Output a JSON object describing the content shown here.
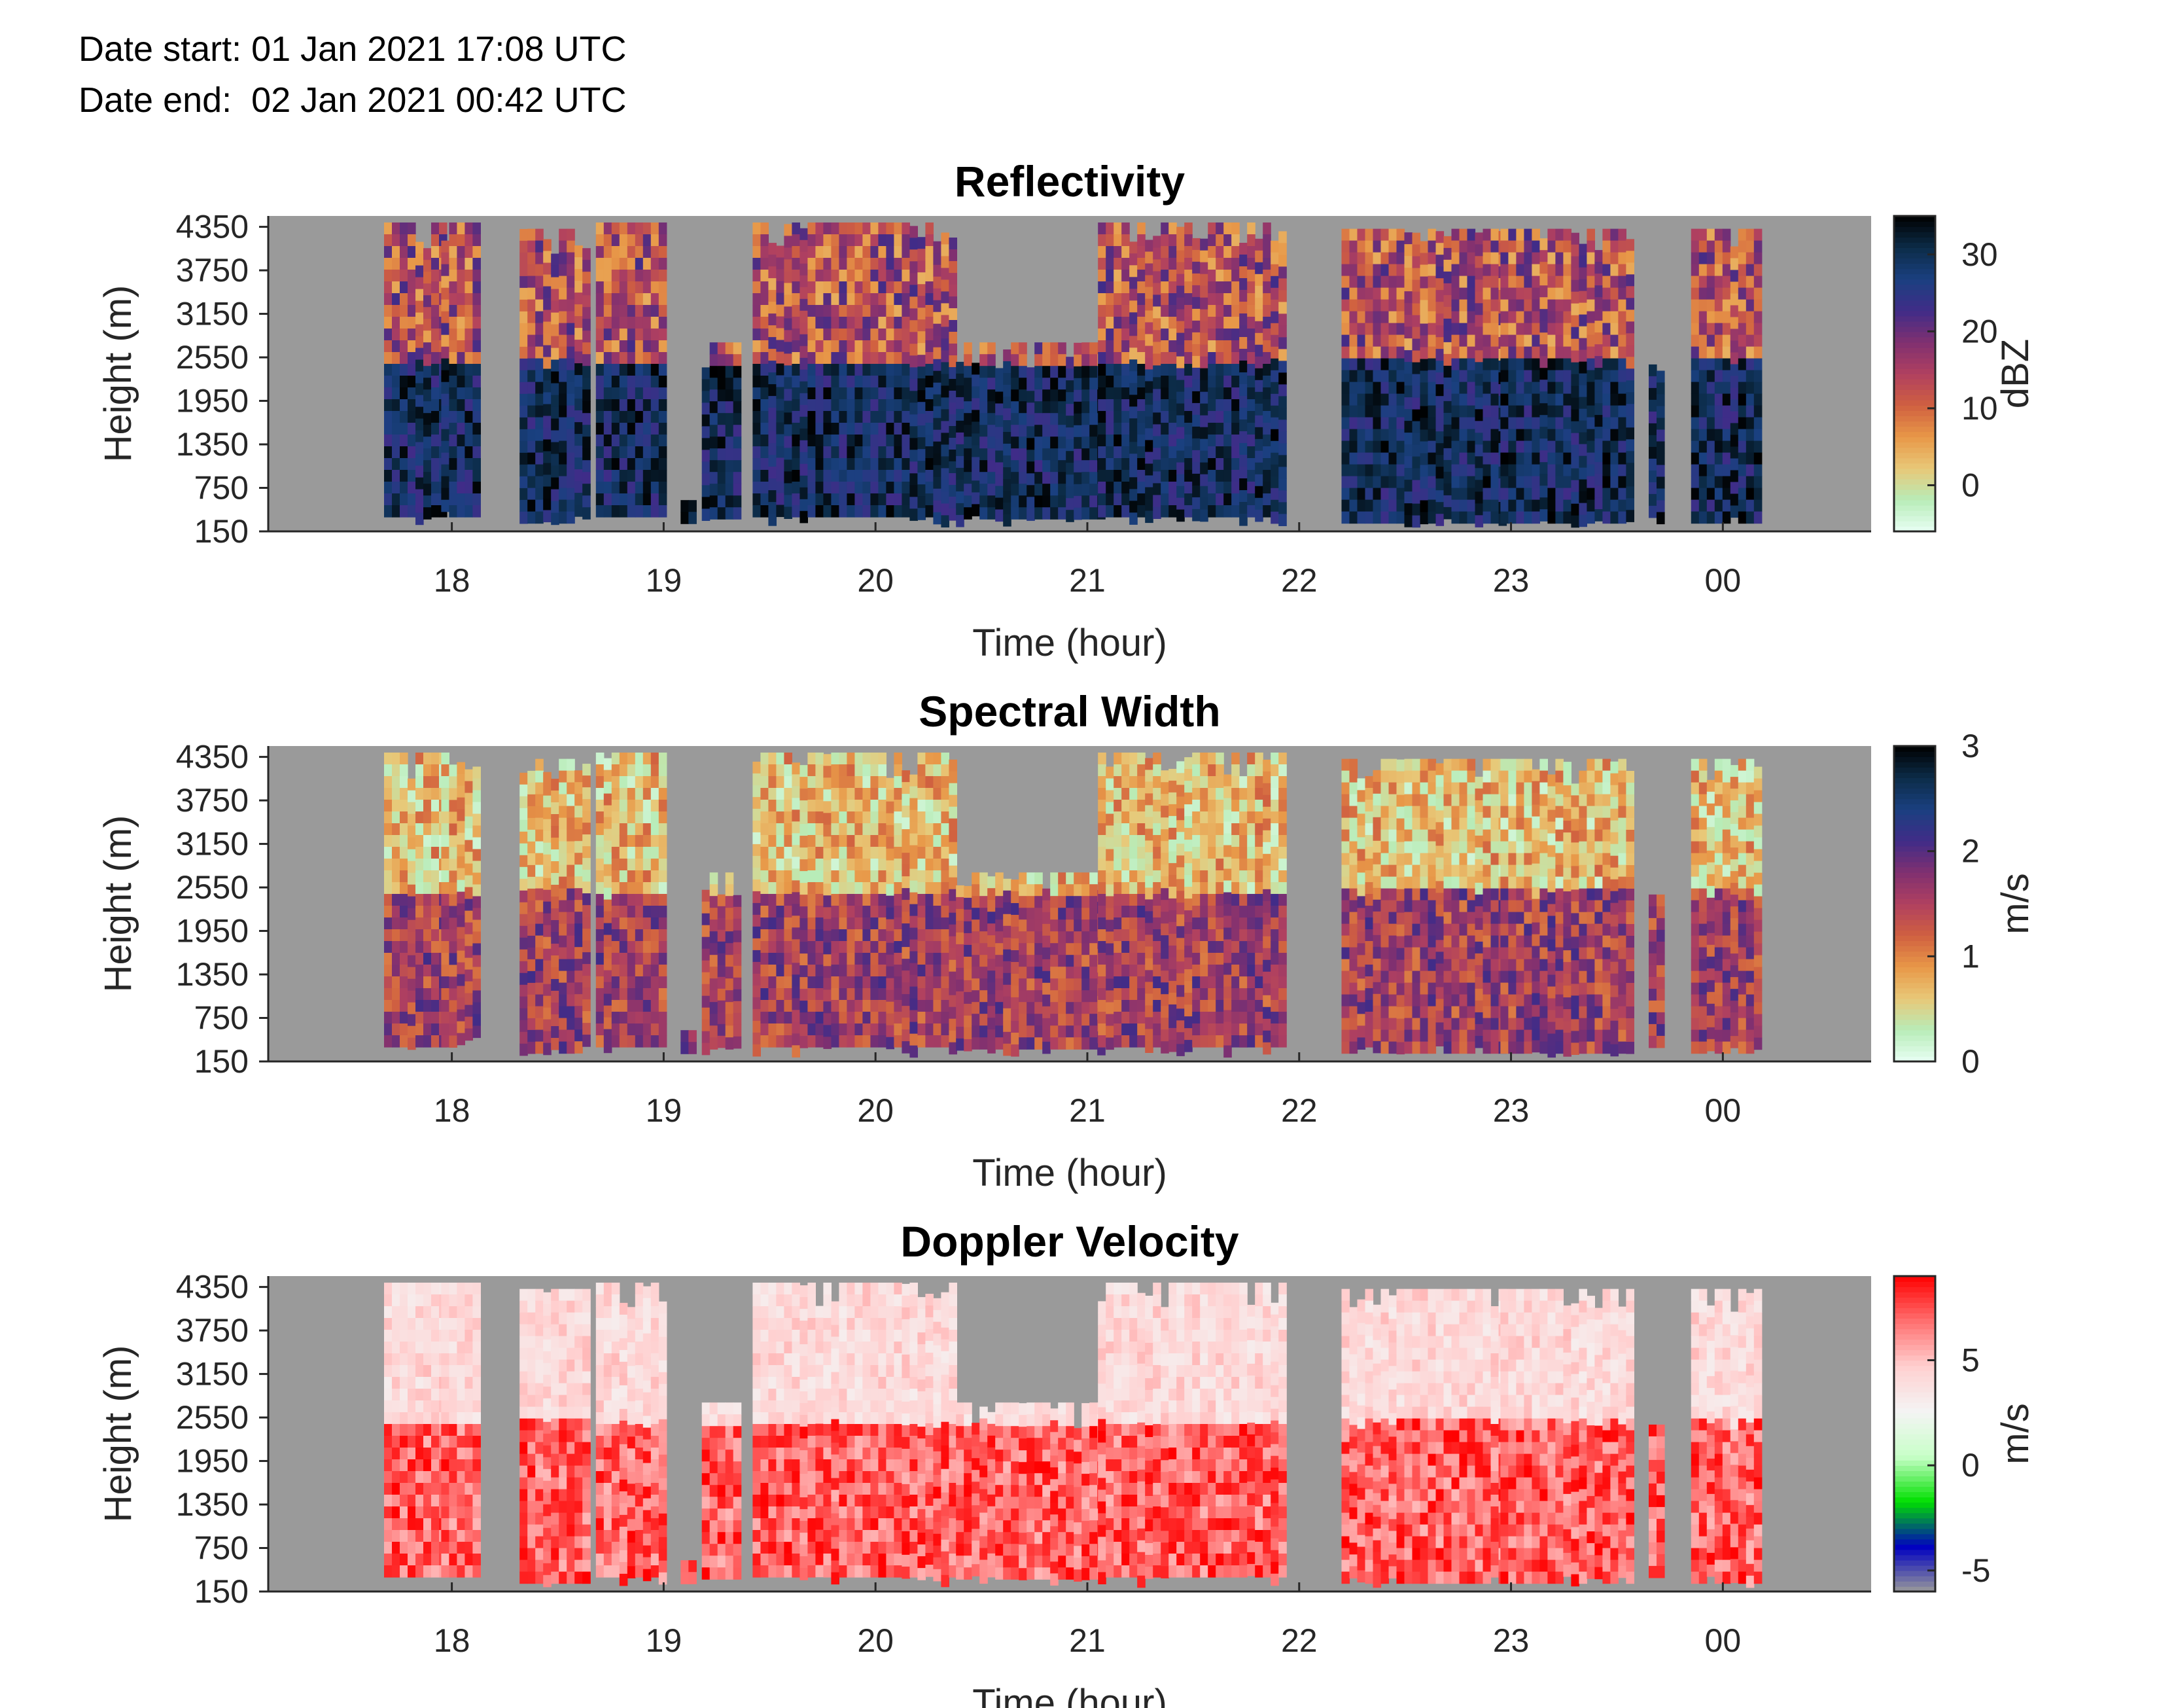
{
  "header": {
    "date_start": "Date start: 01 Jan 2021 17:08 UTC",
    "date_end": "Date end:  02 Jan 2021 00:42 UTC"
  },
  "colors": {
    "no_data": "#9a9a9a",
    "axis": "#262626"
  },
  "chart_data": [
    {
      "type": "heatmap",
      "title": "Reflectivity",
      "xlabel": "Time (hour)",
      "ylabel": "Height (m)",
      "xticks": [
        "18",
        "19",
        "20",
        "21",
        "22",
        "23",
        "00"
      ],
      "yticks": [
        "150",
        "750",
        "1350",
        "1950",
        "2550",
        "3150",
        "3750",
        "4350"
      ],
      "xlim": [
        "17:08",
        "00:42"
      ],
      "ylim": [
        150,
        4500
      ],
      "colorbar": {
        "label": "dBZ",
        "ticks": [
          "0",
          "10",
          "20",
          "30"
        ],
        "range": [
          -6,
          35
        ]
      },
      "colormap": [
        "#e8fff4",
        "#b8ecb8",
        "#e8c878",
        "#e89848",
        "#d06040",
        "#b04060",
        "#803070",
        "#402c88",
        "#1a4080",
        "#0c2c48",
        "#000000"
      ]
    },
    {
      "type": "heatmap",
      "title": "Spectral Width",
      "xlabel": "Time (hour)",
      "ylabel": "Height (m)",
      "xticks": [
        "18",
        "19",
        "20",
        "21",
        "22",
        "23",
        "00"
      ],
      "yticks": [
        "150",
        "750",
        "1350",
        "1950",
        "2550",
        "3150",
        "3750",
        "4350"
      ],
      "xlim": [
        "17:08",
        "00:42"
      ],
      "ylim": [
        150,
        4500
      ],
      "colorbar": {
        "label": "m/s",
        "ticks": [
          "0",
          "1",
          "2",
          "3"
        ],
        "range": [
          0,
          3
        ]
      },
      "colormap": [
        "#e8fff4",
        "#b8ecb8",
        "#e8c878",
        "#e89848",
        "#d06040",
        "#b04060",
        "#803070",
        "#402c88",
        "#1a4080",
        "#0c2c48",
        "#000000"
      ]
    },
    {
      "type": "heatmap",
      "title": "Doppler Velocity",
      "xlabel": "Time (hour)",
      "ylabel": "Height (m)",
      "xticks": [
        "18",
        "19",
        "20",
        "21",
        "22",
        "23",
        "00"
      ],
      "yticks": [
        "150",
        "750",
        "1350",
        "1950",
        "2550",
        "3150",
        "3750",
        "4350"
      ],
      "xlim": [
        "17:08",
        "00:42"
      ],
      "ylim": [
        150,
        4500
      ],
      "colorbar": {
        "label": "m/s",
        "ticks": [
          "-5",
          "0",
          "5"
        ],
        "range": [
          -6,
          9
        ]
      },
      "colormap": [
        "#9a9a9a",
        "#0000c0",
        "#00e000",
        "#c8ffc8",
        "#f4f4f4",
        "#ffd0d0",
        "#ff7070",
        "#ff0000"
      ]
    }
  ]
}
